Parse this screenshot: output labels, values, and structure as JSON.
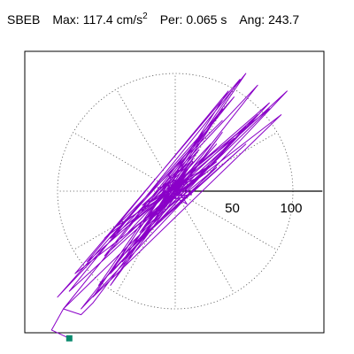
{
  "header": {
    "station": "SBEB",
    "max_label": "Max:",
    "max_value": "117.4",
    "max_unit": "cm/s",
    "max_unit_exp": "2",
    "per_label": "Per:",
    "per_value": "0.065 s",
    "ang_label": "Ang:",
    "ang_value": "243.7"
  },
  "chart_data": {
    "type": "polar-orbit",
    "title": "",
    "radial_ticks": [
      50,
      100
    ],
    "radial_tick_labels": [
      "50",
      "100"
    ],
    "grid_ring_radius": 100,
    "grid_spokes_deg": [
      0,
      30,
      60,
      90,
      120,
      150,
      180,
      210,
      240,
      270,
      300,
      330
    ],
    "axis_range": [
      -125,
      125
    ],
    "trace_color": "#8a00c8",
    "endpoint_color": "#0a8a6e",
    "peak_amplitude": 117.4,
    "peak_angle_deg": 243.7,
    "trace_points": [
      [
        0,
        0
      ],
      [
        4,
        3
      ],
      [
        -3,
        -2
      ],
      [
        5,
        -4
      ],
      [
        -6,
        5
      ],
      [
        3,
        6
      ],
      [
        -4,
        -6
      ],
      [
        7,
        2
      ],
      [
        -8,
        -3
      ],
      [
        6,
        8
      ],
      [
        -7,
        -7
      ],
      [
        9,
        -5
      ],
      [
        -9,
        6
      ],
      [
        4,
        10
      ],
      [
        -5,
        -9
      ],
      [
        12,
        6
      ],
      [
        -10,
        -8
      ],
      [
        8,
        12
      ],
      [
        -13,
        -5
      ],
      [
        14,
        -3
      ],
      [
        -6,
        14
      ],
      [
        10,
        -11
      ],
      [
        -15,
        3
      ],
      [
        16,
        9
      ],
      [
        -12,
        -13
      ],
      [
        3,
        18
      ],
      [
        -18,
        -6
      ],
      [
        20,
        12
      ],
      [
        -14,
        -17
      ],
      [
        11,
        22
      ],
      [
        -22,
        -10
      ],
      [
        25,
        18
      ],
      [
        -20,
        -22
      ],
      [
        15,
        27
      ],
      [
        -28,
        -12
      ],
      [
        30,
        22
      ],
      [
        -25,
        -28
      ],
      [
        35,
        40
      ],
      [
        -30,
        -35
      ],
      [
        20,
        35
      ],
      [
        -40,
        -30
      ],
      [
        50,
        45
      ],
      [
        -35,
        -45
      ],
      [
        30,
        55
      ],
      [
        -55,
        -40
      ],
      [
        60,
        55
      ],
      [
        -45,
        -60
      ],
      [
        40,
        70
      ],
      [
        -60,
        -55
      ],
      [
        70,
        65
      ],
      [
        -55,
        -70
      ],
      [
        45,
        85
      ],
      [
        -75,
        -60
      ],
      [
        80,
        75
      ],
      [
        -65,
        -80
      ],
      [
        55,
        95
      ],
      [
        -85,
        -70
      ],
      [
        90,
        65
      ],
      [
        -70,
        -90
      ],
      [
        60,
        100
      ],
      [
        -90,
        -85
      ],
      [
        95,
        85
      ],
      [
        -80,
        -100
      ],
      [
        70,
        90
      ],
      [
        -100,
        -90
      ],
      [
        50,
        80
      ],
      [
        -95,
        -100
      ],
      [
        80,
        70
      ],
      [
        -60,
        -40
      ],
      [
        40,
        60
      ],
      [
        -50,
        -30
      ],
      [
        35,
        25
      ],
      [
        -40,
        -35
      ],
      [
        30,
        40
      ],
      [
        -20,
        -15
      ],
      [
        25,
        30
      ],
      [
        -30,
        -40
      ],
      [
        60,
        40
      ],
      [
        -45,
        -55
      ],
      [
        35,
        20
      ],
      [
        -25,
        -30
      ],
      [
        15,
        25
      ],
      [
        -55,
        -80
      ],
      [
        40,
        50
      ],
      [
        -70,
        -95
      ],
      [
        -80,
        -105
      ],
      [
        -95,
        -100
      ],
      [
        -105,
        -118
      ],
      [
        -90,
        -125
      ]
    ]
  }
}
